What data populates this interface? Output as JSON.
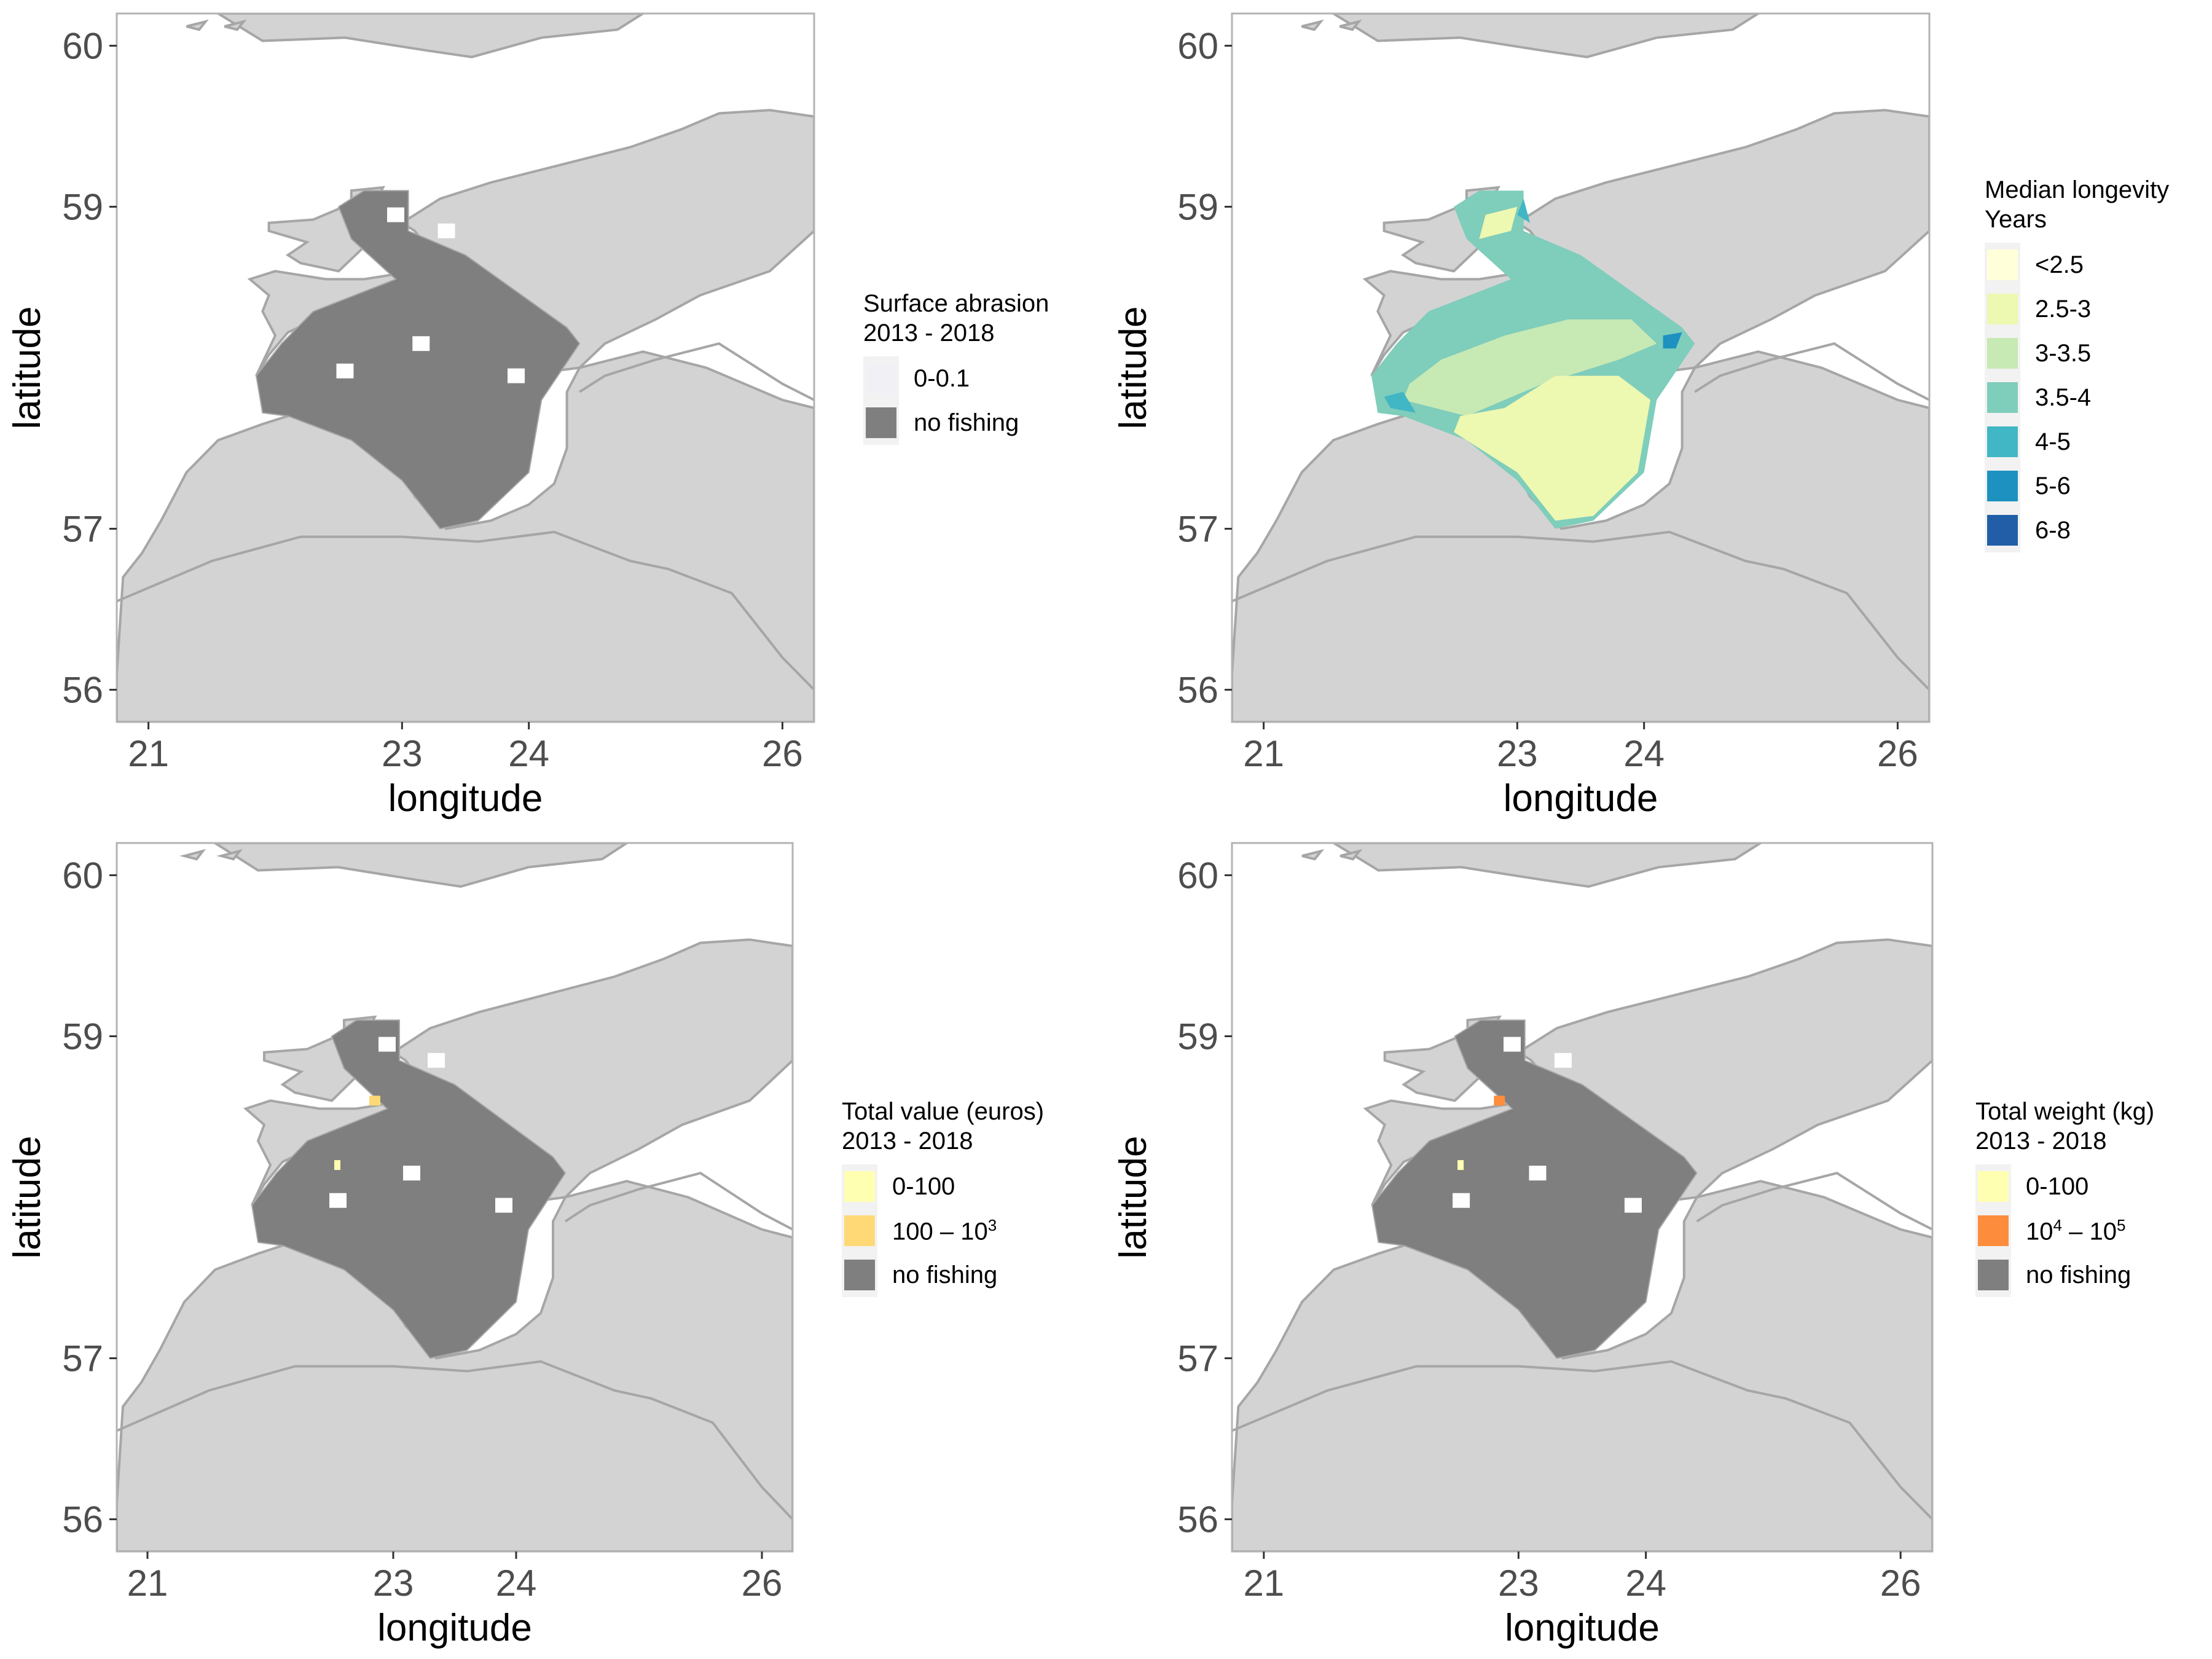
{
  "axes": {
    "xlabel": "longitude",
    "ylabel": "latitude",
    "x_ticks": [
      "21",
      "23",
      "24",
      "26"
    ],
    "y_ticks": [
      "60",
      "59",
      "57",
      "56"
    ],
    "x_tick_values": [
      21,
      23,
      24,
      26
    ],
    "y_tick_values": [
      60,
      59,
      57,
      56
    ],
    "xlim": [
      20.75,
      26.25
    ],
    "ylim": [
      55.8,
      60.2
    ]
  },
  "colors": {
    "land": "#d3d3d3",
    "coast_line": "#a6a6a6",
    "no_fishing": "#7f7f7f",
    "panel_border": "#b3b3b3",
    "legend_key_bg": "#f2f2f2"
  },
  "panels": [
    {
      "id": "surface-abrasion",
      "legend_title": "Surface abrasion\n 2013 - 2018",
      "fill": "fishing",
      "legend": [
        {
          "label": "0-0.1",
          "color": "#f0f0f5"
        },
        {
          "label": "no fishing",
          "color": "#7f7f7f"
        }
      ]
    },
    {
      "id": "median-longevity",
      "legend_title": "Median longevity\n Years",
      "fill": "longevity",
      "legend": [
        {
          "label": "<2.5",
          "color": "#ffffd9"
        },
        {
          "label": "2.5-3",
          "color": "#edf8b1"
        },
        {
          "label": "3-3.5",
          "color": "#c7e9b4"
        },
        {
          "label": "3.5-4",
          "color": "#7fcdbb"
        },
        {
          "label": "4-5",
          "color": "#41b6c4"
        },
        {
          "label": "5-6",
          "color": "#1d91c0"
        },
        {
          "label": "6-8",
          "color": "#225ea8"
        }
      ]
    },
    {
      "id": "total-value",
      "legend_title": "Total value (euros)\n 2013 - 2018",
      "fill": "fishing",
      "highlight_color": "#fed976",
      "legend": [
        {
          "label": "0-100",
          "color": "#ffffb2"
        },
        {
          "label_base": "100 – 10",
          "label_sup": "3",
          "color": "#fed976"
        },
        {
          "label": "no fishing",
          "color": "#7f7f7f"
        }
      ]
    },
    {
      "id": "total-weight",
      "legend_title": "Total weight (kg)\n 2013 - 2018",
      "fill": "fishing",
      "highlight_color": "#fd8d3c",
      "legend": [
        {
          "label": "0-100",
          "color": "#ffffb2"
        },
        {
          "label_base": "10",
          "label_sup": "4",
          "label_mid": " – 10",
          "label_sup2": "5",
          "color": "#fd8d3c"
        },
        {
          "label": "no fishing",
          "color": "#7f7f7f"
        }
      ]
    }
  ],
  "map_geometry": {
    "north_land": [
      [
        21.55,
        60.2
      ],
      [
        21.9,
        60.03
      ],
      [
        22.55,
        60.05
      ],
      [
        23.2,
        59.97
      ],
      [
        23.55,
        59.93
      ],
      [
        24.1,
        60.05
      ],
      [
        24.7,
        60.1
      ],
      [
        24.9,
        60.2
      ]
    ],
    "east_land": [
      [
        23.0,
        58.9
      ],
      [
        23.3,
        59.05
      ],
      [
        23.7,
        59.15
      ],
      [
        24.2,
        59.25
      ],
      [
        24.8,
        59.37
      ],
      [
        25.2,
        59.48
      ],
      [
        25.5,
        59.58
      ],
      [
        25.9,
        59.6
      ],
      [
        26.25,
        59.56
      ],
      [
        26.25,
        58.85
      ],
      [
        25.9,
        58.6
      ],
      [
        25.35,
        58.45
      ],
      [
        25.0,
        58.3
      ],
      [
        24.6,
        58.15
      ],
      [
        24.4,
        58.0
      ],
      [
        24.2,
        57.98
      ],
      [
        24.2,
        58.25
      ],
      [
        23.8,
        58.4
      ],
      [
        23.4,
        58.55
      ],
      [
        23.2,
        58.75
      ],
      [
        23.1,
        58.85
      ]
    ],
    "south_land": [
      [
        20.75,
        56.1
      ],
      [
        20.8,
        56.7
      ],
      [
        20.95,
        56.85
      ],
      [
        21.1,
        57.05
      ],
      [
        21.3,
        57.35
      ],
      [
        21.55,
        57.55
      ],
      [
        21.9,
        57.65
      ],
      [
        22.3,
        57.75
      ],
      [
        22.55,
        57.72
      ],
      [
        22.9,
        57.5
      ],
      [
        23.1,
        57.2
      ],
      [
        23.35,
        57.0
      ],
      [
        23.7,
        57.05
      ],
      [
        24.0,
        57.15
      ],
      [
        24.2,
        57.28
      ],
      [
        24.3,
        57.5
      ],
      [
        24.3,
        57.85
      ],
      [
        24.4,
        58.0
      ],
      [
        24.9,
        58.1
      ],
      [
        25.4,
        58.0
      ],
      [
        26.0,
        57.8
      ],
      [
        26.25,
        57.75
      ],
      [
        26.25,
        55.8
      ],
      [
        20.75,
        55.8
      ]
    ],
    "islands": [
      [
        [
          21.95,
          58.9
        ],
        [
          22.3,
          58.92
        ],
        [
          22.6,
          59.02
        ],
        [
          22.75,
          58.95
        ],
        [
          22.7,
          58.75
        ],
        [
          22.5,
          58.6
        ],
        [
          22.2,
          58.65
        ],
        [
          22.1,
          58.7
        ],
        [
          22.25,
          58.78
        ],
        [
          21.95,
          58.85
        ]
      ],
      [
        [
          21.8,
          58.55
        ],
        [
          22.0,
          58.6
        ],
        [
          22.4,
          58.55
        ],
        [
          22.7,
          58.55
        ],
        [
          23.1,
          58.6
        ],
        [
          23.3,
          58.55
        ],
        [
          23.0,
          58.45
        ],
        [
          22.6,
          58.4
        ],
        [
          22.1,
          58.22
        ],
        [
          21.95,
          58.08
        ],
        [
          21.85,
          57.95
        ],
        [
          22.0,
          58.2
        ],
        [
          21.9,
          58.35
        ],
        [
          21.95,
          58.45
        ]
      ],
      [
        [
          22.6,
          59.1
        ],
        [
          22.85,
          59.12
        ],
        [
          22.8,
          59.05
        ],
        [
          22.6,
          59.05
        ]
      ],
      [
        [
          21.6,
          60.12
        ],
        [
          21.75,
          60.15
        ],
        [
          21.7,
          60.1
        ]
      ],
      [
        [
          21.3,
          60.12
        ],
        [
          21.45,
          60.15
        ],
        [
          21.4,
          60.1
        ]
      ]
    ],
    "border_lines": [
      [
        [
          20.75,
          56.55
        ],
        [
          21.5,
          56.8
        ],
        [
          22.2,
          56.95
        ],
        [
          23.0,
          56.95
        ],
        [
          23.6,
          56.92
        ],
        [
          24.2,
          56.98
        ],
        [
          24.8,
          56.8
        ],
        [
          25.1,
          56.75
        ],
        [
          25.6,
          56.6
        ],
        [
          26.0,
          56.2
        ],
        [
          26.25,
          56.0
        ]
      ],
      [
        [
          24.4,
          57.85
        ],
        [
          24.6,
          57.95
        ],
        [
          25.0,
          58.05
        ],
        [
          25.5,
          58.15
        ],
        [
          26.0,
          57.9
        ],
        [
          26.25,
          57.8
        ]
      ]
    ],
    "fishing_area": [
      [
        22.7,
        59.1
      ],
      [
        23.05,
        59.1
      ],
      [
        23.05,
        58.85
      ],
      [
        23.5,
        58.7
      ],
      [
        24.3,
        58.25
      ],
      [
        24.4,
        58.15
      ],
      [
        24.1,
        57.8
      ],
      [
        24.0,
        57.35
      ],
      [
        23.6,
        57.05
      ],
      [
        23.3,
        57.0
      ],
      [
        23.0,
        57.3
      ],
      [
        22.6,
        57.55
      ],
      [
        22.1,
        57.7
      ],
      [
        21.9,
        57.72
      ],
      [
        21.85,
        57.95
      ],
      [
        22.05,
        58.15
      ],
      [
        22.3,
        58.35
      ],
      [
        22.95,
        58.55
      ],
      [
        22.6,
        58.8
      ],
      [
        22.5,
        59.0
      ]
    ],
    "no_fishing_gaps": [
      [
        23.15,
        58.15
      ],
      [
        23.9,
        57.95
      ],
      [
        22.95,
        58.95
      ],
      [
        23.35,
        58.85
      ],
      [
        22.55,
        57.98
      ]
    ],
    "value_highlight": [
      22.85,
      58.6
    ]
  },
  "longevity_zones": [
    {
      "color_index": 3,
      "poly": [
        [
          22.7,
          59.1
        ],
        [
          23.05,
          59.1
        ],
        [
          23.05,
          58.85
        ],
        [
          23.5,
          58.7
        ],
        [
          24.3,
          58.25
        ],
        [
          24.4,
          58.15
        ],
        [
          24.1,
          57.8
        ],
        [
          24.0,
          57.35
        ],
        [
          23.6,
          57.05
        ],
        [
          23.3,
          57.0
        ],
        [
          23.0,
          57.3
        ],
        [
          22.6,
          57.55
        ],
        [
          22.1,
          57.7
        ],
        [
          21.9,
          57.72
        ],
        [
          21.85,
          57.95
        ],
        [
          22.05,
          58.15
        ],
        [
          22.3,
          58.35
        ],
        [
          22.95,
          58.55
        ],
        [
          22.6,
          58.8
        ],
        [
          22.5,
          59.0
        ]
      ]
    },
    {
      "color_index": 2,
      "poly": [
        [
          22.1,
          57.8
        ],
        [
          22.6,
          57.7
        ],
        [
          23.2,
          57.9
        ],
        [
          23.8,
          58.05
        ],
        [
          24.1,
          58.15
        ],
        [
          23.9,
          58.3
        ],
        [
          23.4,
          58.3
        ],
        [
          22.9,
          58.2
        ],
        [
          22.4,
          58.05
        ],
        [
          22.15,
          57.9
        ]
      ]
    },
    {
      "color_index": 1,
      "poly": [
        [
          22.5,
          57.6
        ],
        [
          23.0,
          57.35
        ],
        [
          23.3,
          57.05
        ],
        [
          23.6,
          57.08
        ],
        [
          23.95,
          57.35
        ],
        [
          24.05,
          57.8
        ],
        [
          23.8,
          57.95
        ],
        [
          23.3,
          57.95
        ],
        [
          22.9,
          57.75
        ],
        [
          22.55,
          57.7
        ]
      ]
    },
    {
      "color_index": 1,
      "poly": [
        [
          22.75,
          58.95
        ],
        [
          23.0,
          59.0
        ],
        [
          22.95,
          58.85
        ],
        [
          22.7,
          58.8
        ]
      ]
    },
    {
      "color_index": 4,
      "poly": [
        [
          22.0,
          57.75
        ],
        [
          22.2,
          57.72
        ],
        [
          22.1,
          57.85
        ],
        [
          21.95,
          57.82
        ]
      ]
    },
    {
      "color_index": 5,
      "poly": [
        [
          24.15,
          58.2
        ],
        [
          24.3,
          58.22
        ],
        [
          24.25,
          58.12
        ],
        [
          24.15,
          58.12
        ]
      ]
    },
    {
      "color_index": 4,
      "poly": [
        [
          23.0,
          58.95
        ],
        [
          23.05,
          59.05
        ],
        [
          23.1,
          58.9
        ]
      ]
    }
  ]
}
